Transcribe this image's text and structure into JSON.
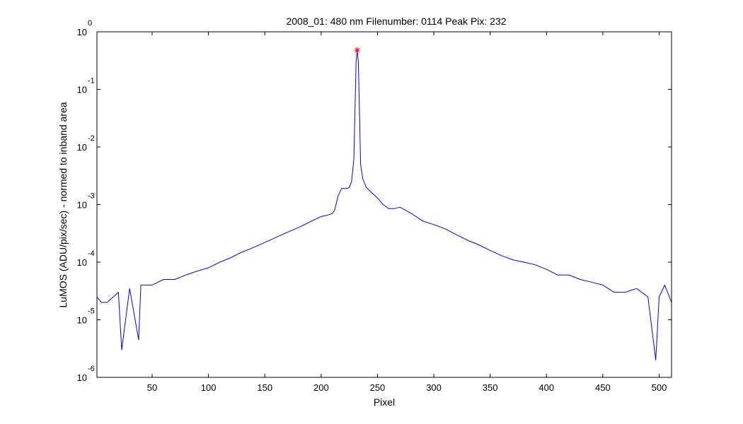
{
  "chart_data": {
    "type": "line",
    "title": "2008_01: 480 nm  Filenumber: 0114 Peak Pix: 232",
    "xlabel": "Pixel",
    "ylabel": "LuMOS (ADU/pix/sec) - normed to inband area",
    "xlim": [
      1,
      511
    ],
    "ylim": [
      1e-06,
      1
    ],
    "yscale": "log",
    "grid": false,
    "x_ticks": [
      50,
      100,
      150,
      200,
      250,
      300,
      350,
      400,
      450,
      500
    ],
    "y_ticks": [
      {
        "value": 1,
        "base": "10",
        "exp": "0"
      },
      {
        "value": 0.1,
        "base": "10",
        "exp": "-1"
      },
      {
        "value": 0.01,
        "base": "10",
        "exp": "-2"
      },
      {
        "value": 0.001,
        "base": "10",
        "exp": "-3"
      },
      {
        "value": 0.0001,
        "base": "10",
        "exp": "-4"
      },
      {
        "value": 1e-05,
        "base": "10",
        "exp": "-5"
      },
      {
        "value": 1e-06,
        "base": "10",
        "exp": "-6"
      }
    ],
    "series": [
      {
        "color": "#0000ff",
        "x": [
          1,
          5,
          10,
          20,
          23,
          30,
          38,
          40,
          50,
          60,
          70,
          80,
          90,
          100,
          110,
          120,
          130,
          140,
          150,
          160,
          170,
          180,
          190,
          200,
          205,
          210,
          212,
          215,
          218,
          220,
          223,
          225,
          227,
          229,
          230,
          231,
          232,
          233,
          234,
          235,
          237,
          240,
          245,
          250,
          255,
          260,
          265,
          270,
          280,
          290,
          300,
          310,
          320,
          330,
          340,
          350,
          360,
          370,
          380,
          390,
          400,
          410,
          420,
          430,
          440,
          450,
          460,
          470,
          480,
          490,
          497,
          500,
          505,
          511
        ],
        "y": [
          2.5e-05,
          2e-05,
          2e-05,
          3e-05,
          3e-06,
          3.5e-05,
          4.5e-06,
          4e-05,
          4e-05,
          5e-05,
          5e-05,
          6e-05,
          7e-05,
          8e-05,
          0.0001,
          0.00012,
          0.00015,
          0.00018,
          0.00022,
          0.00027,
          0.00033,
          0.0004,
          0.0005,
          0.00062,
          0.00065,
          0.0007,
          0.0008,
          0.0014,
          0.0019,
          0.0019,
          0.0019,
          0.002,
          0.0025,
          0.006,
          0.04,
          0.3,
          0.48,
          0.3,
          0.04,
          0.005,
          0.0028,
          0.002,
          0.0016,
          0.0013,
          0.001,
          0.00085,
          0.00085,
          0.0009,
          0.0007,
          0.00052,
          0.00045,
          0.00038,
          0.0003,
          0.00024,
          0.0002,
          0.00016,
          0.00013,
          0.00011,
          0.0001,
          9e-05,
          7.5e-05,
          6e-05,
          6e-05,
          5e-05,
          4.5e-05,
          4e-05,
          3e-05,
          3e-05,
          3.5e-05,
          2.5e-05,
          2e-06,
          2.5e-05,
          4e-05,
          2e-05
        ]
      }
    ],
    "peak_marker": {
      "x": 232,
      "y": 0.48,
      "symbol": "*",
      "color": "#ff0000"
    }
  }
}
